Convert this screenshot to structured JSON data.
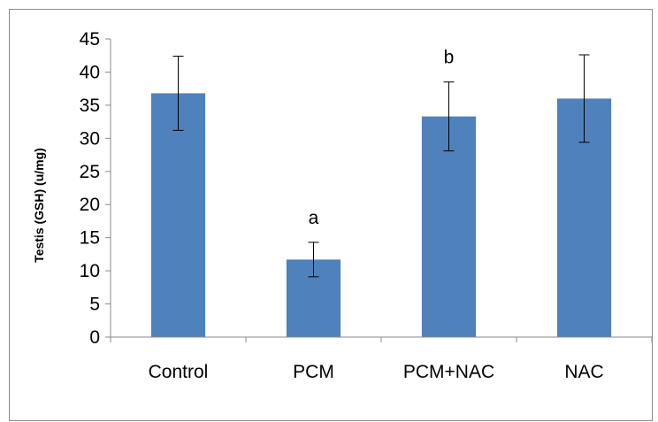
{
  "chart_data": {
    "type": "bar",
    "title": "",
    "xlabel": "",
    "ylabel": "Testis (GSH) (u/mg)",
    "ylim": [
      0,
      45
    ],
    "yticks": [
      0,
      5,
      10,
      15,
      20,
      25,
      30,
      35,
      40,
      45
    ],
    "categories": [
      "Control",
      "PCM",
      "PCM+NAC",
      "NAC"
    ],
    "values": [
      36.8,
      11.7,
      33.3,
      36.0
    ],
    "errors": [
      5.6,
      2.6,
      5.2,
      6.6
    ],
    "annotations": [
      "",
      "a",
      "b",
      ""
    ],
    "bar_color": "#4f81bd",
    "grid": false,
    "legend": "none"
  }
}
